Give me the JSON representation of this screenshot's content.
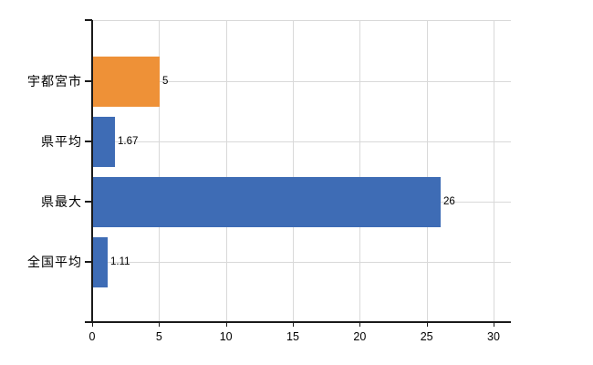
{
  "chart_data": {
    "type": "bar",
    "orientation": "horizontal",
    "title": "",
    "xlabel": "",
    "ylabel": "",
    "categories": [
      "宇都宮市",
      "県平均",
      "県最大",
      "全国平均"
    ],
    "values": [
      5,
      1.67,
      26,
      1.11
    ],
    "value_labels": [
      "5",
      "1.67",
      "26",
      "1.11"
    ],
    "bar_colors": [
      "#ee9137",
      "#3e6cb5",
      "#3e6cb5",
      "#3e6cb5"
    ],
    "xlim": [
      0,
      31.3
    ],
    "x_ticks": [
      0,
      5,
      10,
      15,
      20,
      25,
      30
    ],
    "x_tick_labels": [
      "0",
      "5",
      "10",
      "15",
      "20",
      "25",
      "30"
    ],
    "grid": true,
    "legend": "none",
    "colors": {
      "bar_orange": "#ee9137",
      "bar_blue": "#3e6cb5",
      "gridline": "#d9d9d9",
      "axis": "#1a1a1a",
      "text": "#000000",
      "background": "#ffffff"
    }
  }
}
